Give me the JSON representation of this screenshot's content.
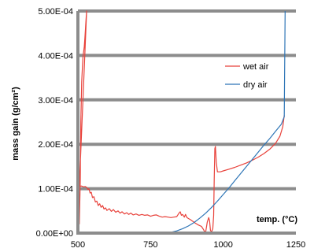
{
  "chart_data": {
    "type": "line",
    "title": "",
    "xlabel": "temp. (°C)",
    "ylabel": "mass gain (g/cm²)",
    "xlim": [
      500,
      1250
    ],
    "ylim": [
      0,
      0.0005
    ],
    "x_ticks": [
      {
        "value": 500,
        "label": "500"
      },
      {
        "value": 750,
        "label": "750"
      },
      {
        "value": 1000,
        "label": "1000"
      },
      {
        "value": 1250,
        "label": "1250"
      }
    ],
    "y_ticks": [
      {
        "value": 0,
        "label": "0.00E+00"
      },
      {
        "value": 0.0001,
        "label": "1.00E-04"
      },
      {
        "value": 0.0002,
        "label": "2.00E-04"
      },
      {
        "value": 0.0003,
        "label": "3.00E-04"
      },
      {
        "value": 0.0004,
        "label": "4.00E-04"
      },
      {
        "value": 0.0005,
        "label": "5.00E-04"
      }
    ],
    "grid": {
      "horizontal": true,
      "vertical": false
    },
    "legend": {
      "position": "right"
    },
    "series": [
      {
        "name": "wet air",
        "color": "#e8413a",
        "points": [
          [
            505,
            2e-05
          ],
          [
            508,
            0.00012
          ],
          [
            510,
            0.00025
          ],
          [
            513,
            0.00034
          ],
          [
            516,
            0.00038
          ],
          [
            518,
            0.0004
          ],
          [
            520,
            0.00041
          ],
          [
            522,
            0.00042
          ],
          [
            524,
            0.00044
          ],
          [
            526,
            0.00046
          ],
          [
            528,
            0.00048
          ],
          [
            530,
            0.0005
          ],
          [
            505,
            0.000105
          ],
          [
            512,
            0.000106
          ],
          [
            520,
            0.000104
          ],
          [
            525,
            0.000105
          ],
          [
            530,
            0.000103
          ],
          [
            535,
            9.8e-05
          ],
          [
            538,
            0.0001
          ],
          [
            542,
            9e-05
          ],
          [
            546,
            9.2e-05
          ],
          [
            550,
            8e-05
          ],
          [
            555,
            8.2e-05
          ],
          [
            560,
            7e-05
          ],
          [
            565,
            7.2e-05
          ],
          [
            570,
            6.2e-05
          ],
          [
            575,
            6.6e-05
          ],
          [
            580,
            5.8e-05
          ],
          [
            585,
            6.2e-05
          ],
          [
            590,
            5.4e-05
          ],
          [
            595,
            5.7e-05
          ],
          [
            600,
            5.1e-05
          ],
          [
            608,
            5.5e-05
          ],
          [
            615,
            4.9e-05
          ],
          [
            622,
            5.3e-05
          ],
          [
            630,
            4.7e-05
          ],
          [
            638,
            5e-05
          ],
          [
            645,
            4.5e-05
          ],
          [
            652,
            4.8e-05
          ],
          [
            660,
            4.3e-05
          ],
          [
            668,
            4.6e-05
          ],
          [
            675,
            4.2e-05
          ],
          [
            682,
            4.5e-05
          ],
          [
            690,
            4.1e-05
          ],
          [
            700,
            4.3e-05
          ],
          [
            710,
            4e-05
          ],
          [
            720,
            4.2e-05
          ],
          [
            730,
            4e-05
          ],
          [
            740,
            4.1e-05
          ],
          [
            750,
            3.8e-05
          ],
          [
            760,
            4e-05
          ],
          [
            770,
            4.1e-05
          ],
          [
            780,
            3.8e-05
          ],
          [
            790,
            3.6e-05
          ],
          [
            800,
            3.7e-05
          ],
          [
            810,
            3.6e-05
          ],
          [
            820,
            3.5e-05
          ],
          [
            830,
            3.6e-05
          ],
          [
            840,
            3.7e-05
          ],
          [
            848,
            4.5e-05
          ],
          [
            852,
            4.8e-05
          ],
          [
            856,
            4e-05
          ],
          [
            860,
            4.2e-05
          ],
          [
            866,
            3.6e-05
          ],
          [
            870,
            4.2e-05
          ],
          [
            875,
            3.5e-05
          ],
          [
            880,
            3.3e-05
          ],
          [
            888,
            3e-05
          ],
          [
            896,
            2.6e-05
          ],
          [
            905,
            2.2e-05
          ],
          [
            915,
            1.8e-05
          ],
          [
            925,
            1.5e-05
          ],
          [
            932,
            8e-06
          ],
          [
            936,
            3e-06
          ],
          [
            940,
            4e-06
          ],
          [
            945,
            2.5e-05
          ],
          [
            950,
            3.5e-05
          ],
          [
            953,
            2.8e-05
          ],
          [
            956,
            6e-06
          ],
          [
            960,
            3e-06
          ],
          [
            964,
            1e-05
          ],
          [
            967,
            4e-05
          ],
          [
            969,
            0.00012
          ],
          [
            971,
            0.00019
          ],
          [
            973,
            0.000195
          ],
          [
            976,
            0.00016
          ],
          [
            980,
            0.000138
          ],
          [
            990,
            0.000138
          ],
          [
            1000,
            0.00014
          ],
          [
            1020,
            0.000144
          ],
          [
            1040,
            0.000148
          ],
          [
            1060,
            0.000153
          ],
          [
            1080,
            0.000158
          ],
          [
            1100,
            0.000164
          ],
          [
            1120,
            0.000171
          ],
          [
            1140,
            0.000179
          ],
          [
            1160,
            0.000189
          ],
          [
            1180,
            0.000202
          ],
          [
            1195,
            0.000218
          ],
          [
            1205,
            0.00024
          ],
          [
            1210,
            0.000265
          ]
        ]
      },
      {
        "name": "dry air",
        "color": "#2e75b6",
        "points": [
          [
            800,
            0.0
          ],
          [
            820,
            2e-06
          ],
          [
            840,
            5e-06
          ],
          [
            860,
            1e-05
          ],
          [
            880,
            1.6e-05
          ],
          [
            900,
            2.4e-05
          ],
          [
            920,
            3.4e-05
          ],
          [
            940,
            4.5e-05
          ],
          [
            960,
            5.8e-05
          ],
          [
            980,
            7.2e-05
          ],
          [
            1000,
            8.7e-05
          ],
          [
            1020,
            0.000102
          ],
          [
            1040,
            0.000118
          ],
          [
            1060,
            0.000134
          ],
          [
            1080,
            0.00015
          ],
          [
            1100,
            0.000166
          ],
          [
            1120,
            0.000182
          ],
          [
            1140,
            0.000198
          ],
          [
            1160,
            0.000213
          ],
          [
            1180,
            0.000229
          ],
          [
            1200,
            0.000245
          ],
          [
            1210,
            0.000262
          ],
          [
            1211,
            0.00035
          ],
          [
            1212,
            0.00043
          ],
          [
            1213,
            0.0005
          ]
        ]
      }
    ]
  }
}
